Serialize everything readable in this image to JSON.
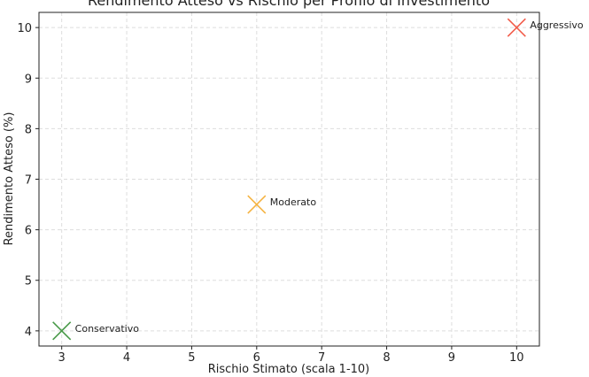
{
  "chart_data": {
    "type": "scatter",
    "title": "Rendimento Atteso vs Rischio per Profilo di Investimento",
    "xlabel": "Rischio Stimato (scala 1-10)",
    "ylabel": "Rendimento Atteso (%)",
    "xlim": [
      2.65,
      10.35
    ],
    "ylim": [
      3.7,
      10.3
    ],
    "xticks": [
      3,
      4,
      5,
      6,
      7,
      8,
      9,
      10
    ],
    "yticks": [
      4,
      5,
      6,
      7,
      8,
      9,
      10
    ],
    "grid": true,
    "marker": "x",
    "points": [
      {
        "label": "Conservativo",
        "x": 3,
        "y": 4,
        "color": "#4a9a4a"
      },
      {
        "label": "Moderato",
        "x": 6,
        "y": 6.5,
        "color": "#f5b342"
      },
      {
        "label": "Aggressivo",
        "x": 10,
        "y": 10,
        "color": "#f25c4a"
      }
    ]
  }
}
